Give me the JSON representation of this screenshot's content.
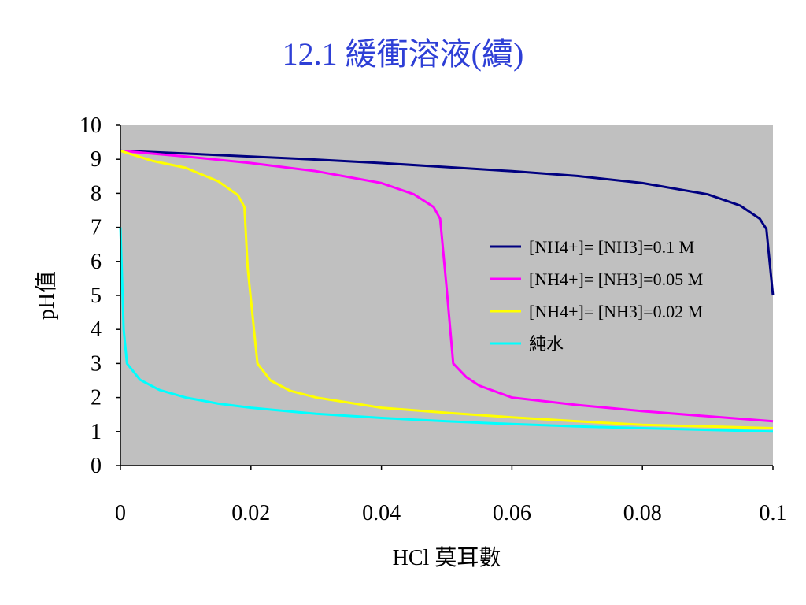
{
  "slide": {
    "title": "12.1 緩衝溶液(續)"
  },
  "chart_data": {
    "type": "line",
    "xlabel": "HCl 莫耳數",
    "ylabel": "pH值",
    "xlim": [
      0,
      0.1
    ],
    "ylim": [
      0,
      10
    ],
    "x_ticks": [
      "0",
      "0.02",
      "0.04",
      "0.06",
      "0.08",
      "0.1"
    ],
    "y_ticks": [
      "0",
      "1",
      "2",
      "3",
      "4",
      "5",
      "6",
      "7",
      "8",
      "9",
      "10"
    ],
    "plot_background": "#c0c0c0",
    "legend_position": "right",
    "series": [
      {
        "name": "[NH4+]= [NH3]=0.1 M",
        "color": "#000080",
        "x": [
          0,
          0.01,
          0.02,
          0.03,
          0.04,
          0.05,
          0.06,
          0.07,
          0.08,
          0.09,
          0.095,
          0.098,
          0.099,
          0.1
        ],
        "y": [
          9.25,
          9.17,
          9.08,
          8.99,
          8.89,
          8.77,
          8.65,
          8.51,
          8.3,
          7.97,
          7.64,
          7.25,
          6.95,
          5.0
        ]
      },
      {
        "name": "[NH4+]= [NH3]=0.05 M",
        "color": "#ff00ff",
        "x": [
          0,
          0.01,
          0.02,
          0.03,
          0.04,
          0.045,
          0.048,
          0.049,
          0.05,
          0.051,
          0.053,
          0.055,
          0.06,
          0.07,
          0.08,
          0.09,
          0.1
        ],
        "y": [
          9.25,
          9.08,
          8.89,
          8.65,
          8.3,
          7.97,
          7.6,
          7.25,
          5.2,
          3.0,
          2.6,
          2.35,
          2.0,
          1.78,
          1.6,
          1.45,
          1.3
        ]
      },
      {
        "name": "[NH4+]= [NH3]=0.02 M",
        "color": "#ffff00",
        "x": [
          0,
          0.005,
          0.01,
          0.015,
          0.018,
          0.019,
          0.0195,
          0.021,
          0.023,
          0.026,
          0.03,
          0.04,
          0.05,
          0.06,
          0.07,
          0.08,
          0.09,
          0.1
        ],
        "y": [
          9.25,
          8.95,
          8.75,
          8.35,
          7.95,
          7.6,
          5.8,
          3.0,
          2.5,
          2.2,
          2.0,
          1.7,
          1.55,
          1.42,
          1.3,
          1.2,
          1.15,
          1.1
        ]
      },
      {
        "name": "純水",
        "color": "#00ffff",
        "x": [
          0,
          0.0005,
          0.001,
          0.003,
          0.006,
          0.01,
          0.015,
          0.02,
          0.03,
          0.04,
          0.05,
          0.06,
          0.07,
          0.08,
          0.09,
          0.1
        ],
        "y": [
          7.0,
          4.0,
          3.0,
          2.52,
          2.22,
          2.0,
          1.82,
          1.7,
          1.52,
          1.4,
          1.3,
          1.22,
          1.15,
          1.1,
          1.05,
          1.0
        ]
      }
    ]
  }
}
